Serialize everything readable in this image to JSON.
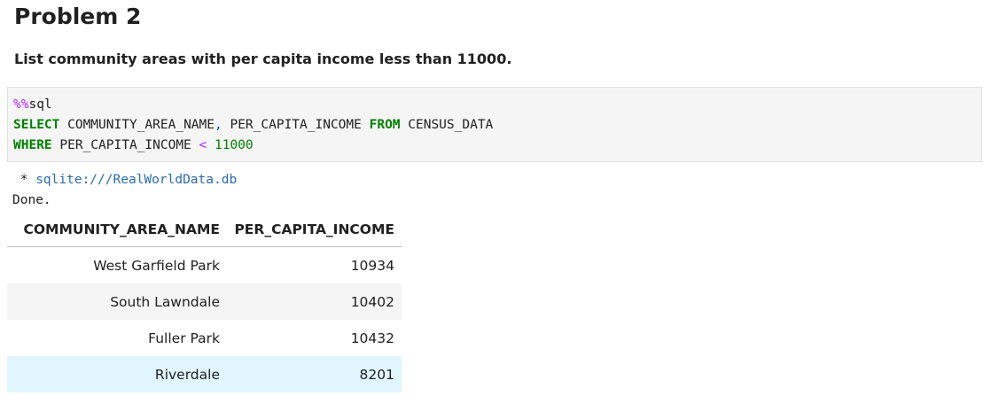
{
  "heading": "Problem 2",
  "instruction": "List community areas with per capita income less than 11000.",
  "code": {
    "magic_prefix": "%%",
    "magic": "sql",
    "line2": {
      "kw1": "SELECT",
      "col1": " COMMUNITY_AREA_NAME",
      "comma": ",",
      "col2": " PER_CAPITA_INCOME ",
      "kw2": "FROM",
      "table": " CENSUS_DATA"
    },
    "line3": {
      "kw": "WHERE",
      "col": " PER_CAPITA_INCOME ",
      "op": "<",
      "num": " 11000"
    }
  },
  "output": {
    "star": " * ",
    "connection": "sqlite:///RealWorldData.db",
    "status": "Done."
  },
  "table": {
    "headers": [
      "COMMUNITY_AREA_NAME",
      "PER_CAPITA_INCOME"
    ],
    "rows": [
      [
        "West Garfield Park",
        10934
      ],
      [
        "South Lawndale",
        10402
      ],
      [
        "Fuller Park",
        10432
      ],
      [
        "Riverdale",
        8201
      ]
    ]
  }
}
